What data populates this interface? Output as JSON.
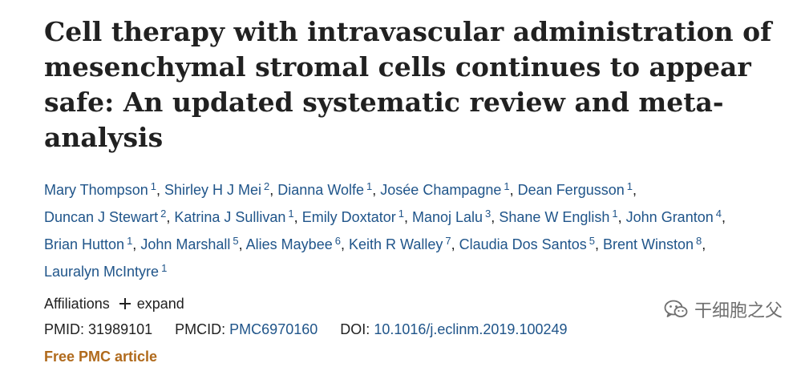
{
  "article": {
    "title": "Cell therapy with intravascular administration of mesenchymal stromal cells continues to appear safe: An updated systematic review and meta-analysis",
    "authors": [
      {
        "name": "Mary Thompson",
        "aff": "1"
      },
      {
        "name": "Shirley H J Mei",
        "aff": "2"
      },
      {
        "name": "Dianna Wolfe",
        "aff": "1"
      },
      {
        "name": "Josée Champagne",
        "aff": "1"
      },
      {
        "name": "Dean Fergusson",
        "aff": "1"
      },
      {
        "name": "Duncan J Stewart",
        "aff": "2"
      },
      {
        "name": "Katrina J Sullivan",
        "aff": "1"
      },
      {
        "name": "Emily Doxtator",
        "aff": "1"
      },
      {
        "name": "Manoj Lalu",
        "aff": "3"
      },
      {
        "name": "Shane W English",
        "aff": "1"
      },
      {
        "name": "John Granton",
        "aff": "4"
      },
      {
        "name": "Brian Hutton",
        "aff": "1"
      },
      {
        "name": "John Marshall",
        "aff": "5"
      },
      {
        "name": "Alies Maybee",
        "aff": "6"
      },
      {
        "name": "Keith R Walley",
        "aff": "7"
      },
      {
        "name": "Claudia Dos Santos",
        "aff": "5"
      },
      {
        "name": "Brent Winston",
        "aff": "8"
      },
      {
        "name": "Lauralyn McIntyre",
        "aff": "1"
      }
    ],
    "affiliations_label": "Affiliations",
    "expand_label": "expand",
    "pmid_label": "PMID:",
    "pmid": "31989101",
    "pmcid_label": "PMCID:",
    "pmcid": "PMC6970160",
    "doi_label": "DOI:",
    "doi": "10.1016/j.eclinm.2019.100249",
    "free_pmc": "Free PMC article"
  },
  "watermark": {
    "text": "干细胞之父",
    "icon": "wechat-icon"
  },
  "colors": {
    "link": "#20558a",
    "free_pmc": "#b06a1c",
    "text": "#212121",
    "watermark": "#6f6f6f"
  }
}
